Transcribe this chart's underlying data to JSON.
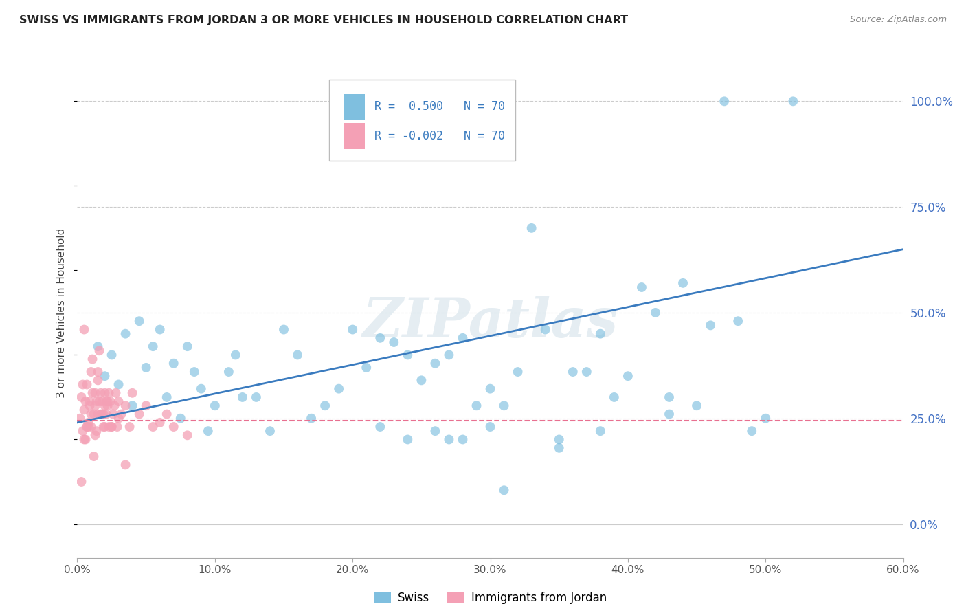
{
  "title": "SWISS VS IMMIGRANTS FROM JORDAN 3 OR MORE VEHICLES IN HOUSEHOLD CORRELATION CHART",
  "source": "Source: ZipAtlas.com",
  "ylabel": "3 or more Vehicles in Household",
  "legend_r_swiss": "R =  0.500",
  "legend_r_jordan": "R = -0.002",
  "legend_n": "N = 70",
  "swiss_color": "#7fbfdf",
  "jordan_color": "#f4a0b5",
  "swiss_line_color": "#3a7bbf",
  "jordan_line_color": "#e87090",
  "right_ytick_labels": [
    "0.0%",
    "25.0%",
    "50.0%",
    "75.0%",
    "100.0%"
  ],
  "right_ytick_values": [
    0,
    25,
    50,
    75,
    100
  ],
  "xlim": [
    0,
    60
  ],
  "ylim": [
    -8,
    108
  ],
  "xtick_labels": [
    "0.0%",
    "10.0%",
    "20.0%",
    "30.0%",
    "40.0%",
    "50.0%",
    "60.0%"
  ],
  "xtick_values": [
    0,
    10,
    20,
    30,
    40,
    50,
    60
  ],
  "watermark": "ZIPatlas",
  "swiss_line_y0": 24,
  "swiss_line_y1": 65,
  "jordan_line_y": 24.5,
  "swiss_x": [
    1.5,
    2.0,
    2.5,
    3.0,
    3.5,
    4.0,
    4.5,
    5.0,
    5.5,
    6.0,
    6.5,
    7.0,
    7.5,
    8.0,
    8.5,
    9.0,
    9.5,
    10.0,
    11.0,
    11.5,
    12.0,
    13.0,
    14.0,
    15.0,
    16.0,
    17.0,
    18.0,
    19.0,
    20.0,
    21.0,
    22.0,
    23.0,
    24.0,
    25.0,
    26.0,
    27.0,
    28.0,
    29.0,
    30.0,
    31.0,
    32.0,
    33.0,
    34.0,
    35.0,
    36.0,
    37.0,
    38.0,
    39.0,
    40.0,
    41.0,
    42.0,
    43.0,
    44.0,
    45.0,
    46.0,
    47.0,
    48.0,
    49.0,
    50.0,
    52.0,
    30.0,
    28.0,
    26.0,
    24.0,
    22.0,
    27.0,
    31.0,
    35.0,
    38.0,
    43.0
  ],
  "swiss_y": [
    42,
    35,
    40,
    33,
    45,
    28,
    48,
    37,
    42,
    46,
    30,
    38,
    25,
    42,
    36,
    32,
    22,
    28,
    36,
    40,
    30,
    30,
    22,
    46,
    40,
    25,
    28,
    32,
    46,
    37,
    44,
    43,
    40,
    34,
    38,
    40,
    44,
    28,
    32,
    28,
    36,
    70,
    46,
    18,
    36,
    36,
    45,
    30,
    35,
    56,
    50,
    30,
    57,
    28,
    47,
    100,
    48,
    22,
    25,
    100,
    23,
    20,
    22,
    20,
    23,
    20,
    8,
    20,
    22,
    26
  ],
  "jordan_x": [
    0.2,
    0.3,
    0.4,
    0.5,
    0.6,
    0.7,
    0.8,
    0.9,
    1.0,
    1.1,
    1.2,
    1.3,
    1.4,
    1.5,
    1.6,
    1.7,
    1.8,
    1.9,
    2.0,
    2.1,
    2.2,
    2.3,
    2.4,
    2.5,
    2.6,
    2.7,
    2.8,
    2.9,
    3.0,
    3.2,
    3.5,
    3.8,
    4.0,
    4.5,
    5.0,
    5.5,
    6.0,
    6.5,
    7.0,
    8.0,
    0.5,
    0.7,
    0.9,
    1.1,
    1.3,
    1.5,
    1.7,
    1.9,
    2.1,
    2.3,
    0.4,
    0.6,
    0.8,
    1.0,
    1.2,
    1.4,
    1.6,
    1.8,
    2.0,
    2.2,
    0.3,
    0.5,
    0.7,
    1.0,
    1.3,
    1.5,
    2.0,
    2.5,
    3.0,
    3.5
  ],
  "jordan_y": [
    25,
    30,
    22,
    27,
    20,
    33,
    24,
    28,
    23,
    31,
    26,
    21,
    29,
    34,
    41,
    26,
    29,
    23,
    31,
    26,
    28,
    31,
    29,
    23,
    26,
    28,
    31,
    23,
    29,
    26,
    28,
    23,
    31,
    26,
    28,
    23,
    24,
    26,
    23,
    21,
    46,
    23,
    29,
    39,
    31,
    36,
    31,
    26,
    29,
    23,
    33,
    29,
    23,
    36,
    16,
    22,
    29,
    26,
    23,
    29,
    10,
    20,
    23,
    26,
    28,
    26,
    28,
    23,
    25,
    14
  ]
}
